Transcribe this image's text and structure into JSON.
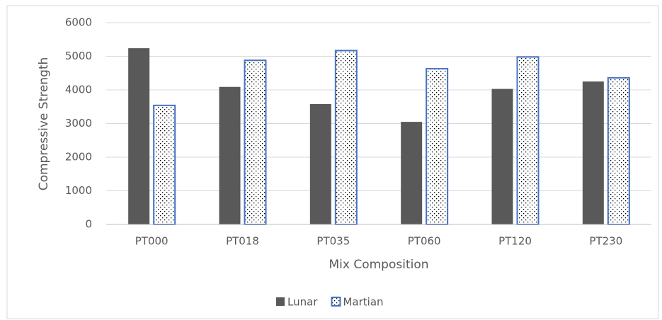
{
  "chart_data": {
    "type": "bar",
    "x_label": "Mix Composition",
    "y_label": "Compressive Strength",
    "categories": [
      "PT000",
      "PT018",
      "PT035",
      "PT060",
      "PT120",
      "PT230"
    ],
    "series": [
      {
        "name": "Lunar",
        "color": "#595959",
        "values": [
          5240,
          4090,
          3580,
          3050,
          4030,
          4250
        ]
      },
      {
        "name": "Martian",
        "color": "#4472c4",
        "values": [
          3540,
          4880,
          5170,
          4630,
          4980,
          4360
        ]
      }
    ],
    "ylim": [
      0,
      6000
    ],
    "yticks": [
      0,
      1000,
      2000,
      3000,
      4000,
      5000,
      6000
    ],
    "grid": true,
    "legend": "bottom"
  }
}
